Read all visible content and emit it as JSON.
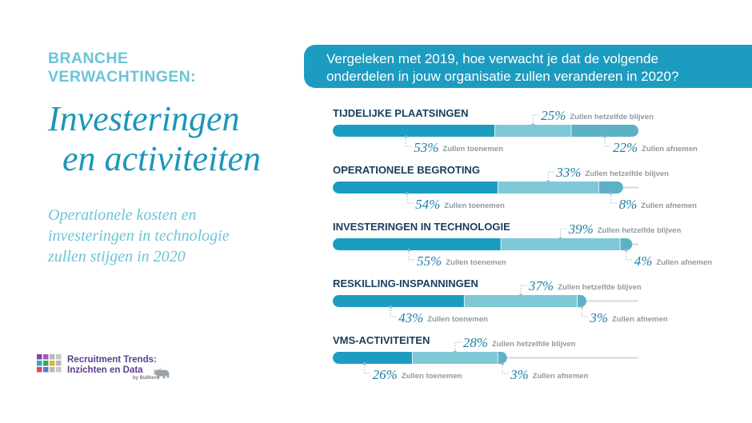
{
  "header": {
    "kicker_line1": "BRANCHE",
    "kicker_line2": "VERWACHTINGEN:",
    "title_line1": "Investeringen",
    "title_line2": "en activiteiten",
    "subtitle_line1": "Operationele kosten en",
    "subtitle_line2": "investeringen in technologie",
    "subtitle_line3": "zullen stijgen in 2020"
  },
  "question": {
    "line1": "Vergeleken met 2019, hoe verwacht je dat de volgende",
    "line2": "onderdelen in jouw organisatie zullen veranderen in 2020?"
  },
  "logo": {
    "line1": "Recruitment Trends:",
    "line2": "Inzichten en Data",
    "by": "by Bullhorn",
    "grid_colors": [
      "#7b4aa0",
      "#a05cb6",
      "#b9b9b9",
      "#c9c9c9",
      "#2aa8c9",
      "#3aa65b",
      "#e0b52f",
      "#b9b9b9",
      "#d64b5a",
      "#5a7cc7",
      "#b9b9b9",
      "#c9c9c9"
    ]
  },
  "colors": {
    "increase": "#1c9cc0",
    "same": "#7fc8d8",
    "decrease": "#5cb1c6",
    "track": "#d4d7da"
  },
  "chart_data": {
    "type": "bar",
    "stacked": true,
    "orientation": "horizontal",
    "xlim": [
      0,
      100
    ],
    "legend_labels": {
      "increase": "Zullen toenemen",
      "same": "Zullen hetzelfde blijven",
      "decrease": "Zullen afnemen"
    },
    "categories": [
      "TIJDELIJKE PLAATSINGEN",
      "OPERATIONELE BEGROTING",
      "INVESTERINGEN IN TECHNOLOGIE",
      "RESKILLING-INSPANNINGEN",
      "VMS-ACTIVITEITEN"
    ],
    "series": [
      {
        "key": "increase",
        "values": [
          53,
          54,
          55,
          43,
          26
        ]
      },
      {
        "key": "same",
        "values": [
          25,
          33,
          39,
          37,
          28
        ]
      },
      {
        "key": "decrease",
        "values": [
          22,
          8,
          4,
          3,
          3
        ]
      }
    ],
    "value_suffix": "%"
  }
}
